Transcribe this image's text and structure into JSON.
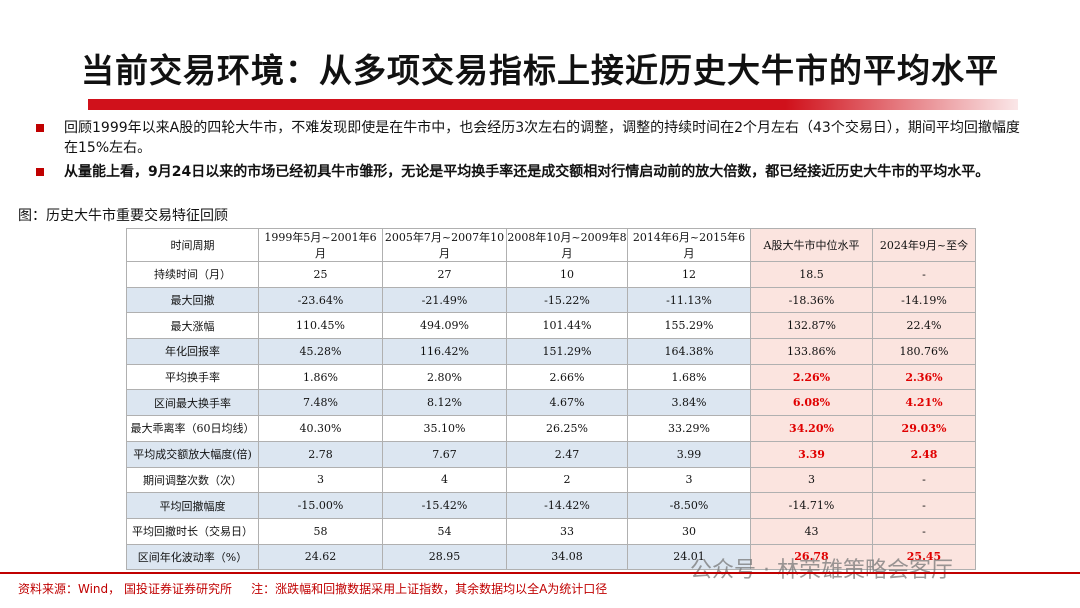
{
  "header": {
    "title": "当前交易环境：从多项交易指标上接近历史大牛市的平均水平"
  },
  "bullets": [
    "回顾1999年以来A股的四轮大牛市，不难发现即使是在牛市中，也会经历3次左右的调整，调整的持续时间在2个月左右（43个交易日），期间平均回撤幅度在15%左右。",
    "从量能上看，9月24日以来的市场已经初具牛市雏形，无论是平均换手率还是成交额相对行情启动前的放大倍数，都已经接近历史大牛市的平均水平。"
  ],
  "caption": "图：历史大牛市重要交易特征回顾",
  "table": {
    "header": [
      "时间周期",
      "1999年5月~2001年6月",
      "2005年7月~2007年10月",
      "2008年10月~2009年8月",
      "2014年6月~2015年6月",
      "A股大牛市中位水平",
      "2024年9月~至今"
    ],
    "rows": [
      [
        "持续时间（月）",
        "25",
        "27",
        "10",
        "12",
        "18.5",
        "-"
      ],
      [
        "最大回撤",
        "-23.64%",
        "-21.49%",
        "-15.22%",
        "-11.13%",
        "-18.36%",
        "-14.19%"
      ],
      [
        "最大涨幅",
        "110.45%",
        "494.09%",
        "101.44%",
        "155.29%",
        "132.87%",
        "22.4%"
      ],
      [
        "年化回报率",
        "45.28%",
        "116.42%",
        "151.29%",
        "164.38%",
        "133.86%",
        "180.76%"
      ],
      [
        "平均换手率",
        "1.86%",
        "2.80%",
        "2.66%",
        "1.68%",
        "2.26%",
        "2.36%"
      ],
      [
        "区间最大换手率",
        "7.48%",
        "8.12%",
        "4.67%",
        "3.84%",
        "6.08%",
        "4.21%"
      ],
      [
        "最大乖离率（60日均线）",
        "40.30%",
        "35.10%",
        "26.25%",
        "33.29%",
        "34.20%",
        "29.03%"
      ],
      [
        "平均成交额放大幅度(倍)",
        "2.78",
        "7.67",
        "2.47",
        "3.99",
        "3.39",
        "2.48"
      ],
      [
        "期间调整次数（次）",
        "3",
        "4",
        "2",
        "3",
        "3",
        "-"
      ],
      [
        "平均回撤幅度",
        "-15.00%",
        "-15.42%",
        "-14.42%",
        "-8.50%",
        "-14.71%",
        "-"
      ],
      [
        "平均回撤时长（交易日）",
        "58",
        "54",
        "33",
        "30",
        "43",
        "-"
      ],
      [
        "区间年化波动率（%）",
        "24.62",
        "28.95",
        "34.08",
        "24.01",
        "26.78",
        "25.45"
      ]
    ]
  },
  "footer": {
    "source": "资料来源：Wind， 国投证券证券研究所",
    "note": "注：涨跌幅和回撤数据采用上证指数，其余数据均以全A为统计口径"
  },
  "watermark": "公众号 · 林荣雄策略会客厅"
}
